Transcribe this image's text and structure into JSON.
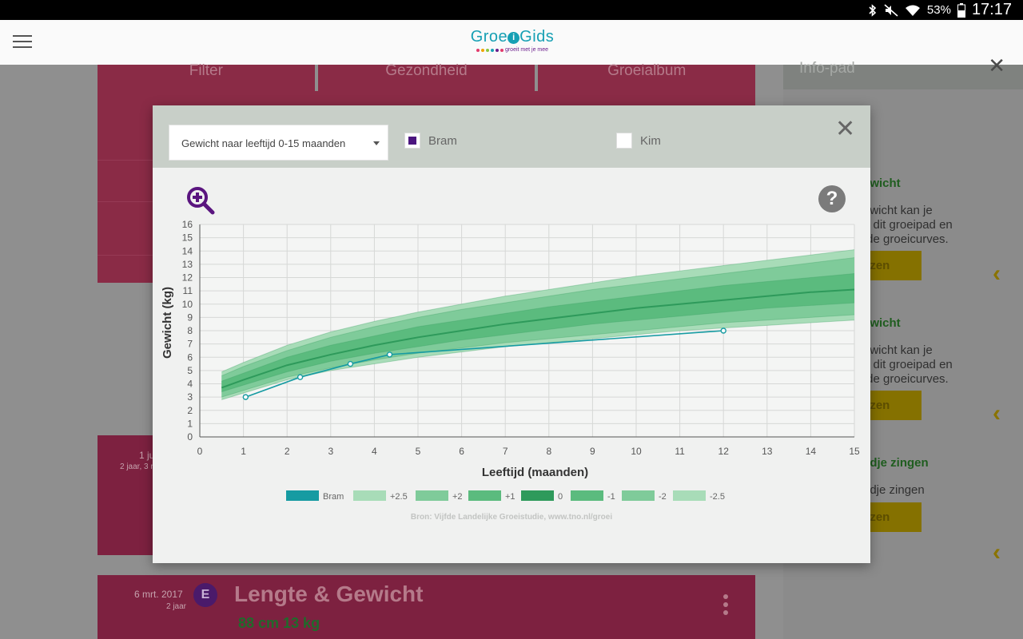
{
  "status_bar": {
    "battery": "53%",
    "time": "17:17",
    "icons": [
      "bluetooth-icon",
      "mute-icon",
      "wifi-icon",
      "battery-icon"
    ]
  },
  "app": {
    "logo_prefix": "Groe",
    "logo_i": "i",
    "logo_suffix": "Gids",
    "logo_tagline": "groeit met je mee"
  },
  "background": {
    "tabs": [
      "Filter",
      "Gezondheid",
      "Groeialbum"
    ],
    "card1": {
      "date": "1 ju",
      "age": "2 jaar, 3 r"
    },
    "card2": {
      "date": "6 mrt. 2017",
      "age": "2 jaar",
      "badge": "E",
      "title": "Lengte & Gewicht",
      "values": "88 cm  13 kg"
    },
    "side": {
      "title": "Info-pad",
      "items": [
        {
          "title": "ewicht",
          "desc": "ewicht kan je\nn dit groeipad en\n de groeicurves.",
          "button": "ezen"
        },
        {
          "title": "ewicht",
          "desc": "ewicht kan je\nn dit groeipad en\n de groeicurves.",
          "button": "ezen"
        },
        {
          "title": "edje zingen",
          "desc": "edje zingen",
          "button": "ezen"
        }
      ]
    }
  },
  "modal": {
    "chart_select": "Gewicht naar leeftijd 0-15 maanden",
    "children": [
      {
        "name": "Bram",
        "checked": true
      },
      {
        "name": "Kim",
        "checked": false
      }
    ],
    "source": "Bron: Vijfde Landelijke Groeistudie, www.tno.nl/groei"
  },
  "colors": {
    "bram_line": "#169ba2",
    "band_outer": "#a8dcb8",
    "band_mid": "#7fcb9a",
    "band_inner": "#5bbb7e",
    "median": "#2e9a5b",
    "checkbox_fill": "#4b157f",
    "zoom_icon": "#5a157f"
  },
  "chart_data": {
    "type": "line",
    "xlabel": "Leeftijd (maanden)",
    "ylabel": "Gewicht (kg)",
    "xlim": [
      0,
      15
    ],
    "ylim": [
      0,
      16
    ],
    "xticks": [
      0,
      1,
      2,
      3,
      4,
      5,
      6,
      7,
      8,
      9,
      10,
      11,
      12,
      13,
      14,
      15
    ],
    "yticks": [
      0,
      1,
      2,
      3,
      4,
      5,
      6,
      7,
      8,
      9,
      10,
      11,
      12,
      13,
      14,
      15,
      16
    ],
    "grid": true,
    "legend": [
      "Bram",
      "+2.5",
      "+2",
      "+1",
      "0",
      "-1",
      "-2",
      "-2.5"
    ],
    "bram": {
      "x": [
        1.05,
        2.3,
        3.45,
        4.35,
        12.0
      ],
      "y": [
        3.0,
        4.5,
        5.5,
        6.2,
        8.0
      ]
    },
    "reference_x": [
      0.5,
      1,
      2,
      3,
      4,
      5,
      6,
      7,
      8,
      9,
      10,
      11,
      12,
      13,
      14,
      15
    ],
    "reference_curves": {
      "+2.5": [
        4.9,
        5.6,
        6.9,
        7.9,
        8.7,
        9.4,
        10.0,
        10.6,
        11.1,
        11.6,
        12.1,
        12.5,
        12.9,
        13.3,
        13.7,
        14.1
      ],
      "+2": [
        4.6,
        5.3,
        6.5,
        7.5,
        8.3,
        9.0,
        9.6,
        10.1,
        10.6,
        11.1,
        11.5,
        11.9,
        12.3,
        12.7,
        13.1,
        13.5
      ],
      "+1": [
        4.2,
        4.8,
        6.0,
        6.9,
        7.6,
        8.3,
        8.8,
        9.3,
        9.8,
        10.2,
        10.6,
        11.0,
        11.4,
        11.7,
        12.0,
        12.3
      ],
      "0": [
        3.7,
        4.3,
        5.4,
        6.2,
        6.9,
        7.5,
        8.0,
        8.5,
        8.9,
        9.3,
        9.7,
        10.0,
        10.3,
        10.6,
        10.9,
        11.1
      ],
      "-1": [
        3.4,
        3.9,
        4.9,
        5.7,
        6.3,
        6.8,
        7.3,
        7.7,
        8.1,
        8.5,
        8.8,
        9.1,
        9.4,
        9.7,
        9.9,
        10.1
      ],
      "-2": [
        3.0,
        3.5,
        4.5,
        5.2,
        5.8,
        6.3,
        6.7,
        7.1,
        7.4,
        7.7,
        8.0,
        8.3,
        8.6,
        8.8,
        9.0,
        9.2
      ],
      "-2.5": [
        2.8,
        3.3,
        4.3,
        5.0,
        5.5,
        6.0,
        6.4,
        6.8,
        7.1,
        7.4,
        7.7,
        8.0,
        8.2,
        8.4,
        8.6,
        8.8
      ]
    }
  }
}
